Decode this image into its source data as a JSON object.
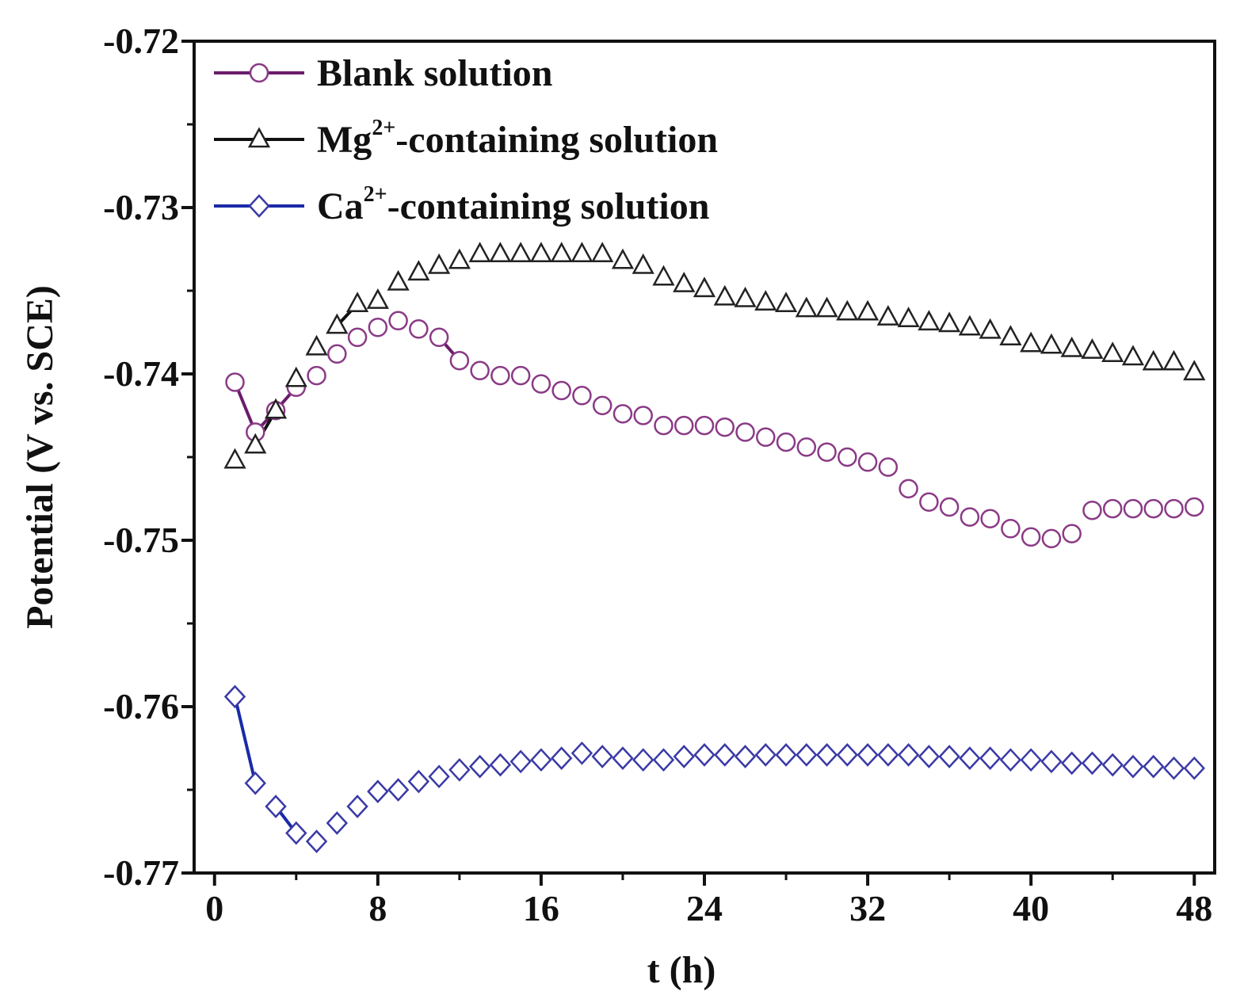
{
  "chart_data": {
    "type": "scatter",
    "title": "",
    "xlabel": "t (h)",
    "ylabel": "Potential (V vs. SCE)",
    "xlim": [
      -1,
      49
    ],
    "ylim": [
      -0.77,
      -0.72
    ],
    "xticks": [
      0,
      8,
      16,
      24,
      32,
      40,
      48
    ],
    "xtick_labels": [
      "0",
      "8",
      "16",
      "24",
      "32",
      "40",
      "48"
    ],
    "yticks": [
      -0.72,
      -0.73,
      -0.74,
      -0.75,
      -0.76,
      -0.77
    ],
    "ytick_labels": [
      "-0.72",
      "-0.73",
      "-0.74",
      "-0.75",
      "-0.76",
      "-0.77"
    ],
    "grid": false,
    "legend_position": "top-left",
    "x": [
      1,
      2,
      3,
      4,
      5,
      6,
      7,
      8,
      9,
      10,
      11,
      12,
      13,
      14,
      15,
      16,
      17,
      18,
      19,
      20,
      21,
      22,
      23,
      24,
      25,
      26,
      27,
      28,
      29,
      30,
      31,
      32,
      33,
      34,
      35,
      36,
      37,
      38,
      39,
      40,
      41,
      42,
      43,
      44,
      45,
      46,
      47,
      48
    ],
    "series": [
      {
        "name": "Blank solution",
        "legend_main": "Blank solution",
        "legend_sup": "",
        "legend_rest": "",
        "marker": "circle",
        "color": "#8a3a86",
        "line_color": "#6b1c6b",
        "values": [
          -0.7405,
          -0.7435,
          -0.7422,
          -0.7408,
          -0.7401,
          -0.7388,
          -0.7378,
          -0.7372,
          -0.7368,
          -0.7373,
          -0.7378,
          -0.7392,
          -0.7398,
          -0.7401,
          -0.7401,
          -0.7406,
          -0.741,
          -0.7413,
          -0.7419,
          -0.7424,
          -0.7425,
          -0.7431,
          -0.7431,
          -0.7431,
          -0.7432,
          -0.7435,
          -0.7438,
          -0.7441,
          -0.7444,
          -0.7447,
          -0.745,
          -0.7453,
          -0.7456,
          -0.7469,
          -0.7477,
          -0.748,
          -0.7486,
          -0.7487,
          -0.7493,
          -0.7498,
          -0.7499,
          -0.7496,
          -0.7482,
          -0.7481,
          -0.7481,
          -0.7481,
          -0.7481,
          -0.748
        ]
      },
      {
        "name": "Mg2+-containing solution",
        "legend_main": "Mg",
        "legend_sup": "2+",
        "legend_rest": "-containing solution",
        "marker": "triangle",
        "color": "#222222",
        "line_color": "#111111",
        "values": [
          -0.7452,
          -0.7443,
          -0.7422,
          -0.7403,
          -0.7384,
          -0.7371,
          -0.7358,
          -0.7356,
          -0.7345,
          -0.7339,
          -0.7335,
          -0.7332,
          -0.7328,
          -0.7328,
          -0.7328,
          -0.7328,
          -0.7328,
          -0.7328,
          -0.7328,
          -0.7332,
          -0.7335,
          -0.7342,
          -0.7346,
          -0.7349,
          -0.7354,
          -0.7355,
          -0.7357,
          -0.7358,
          -0.7361,
          -0.7361,
          -0.7363,
          -0.7363,
          -0.7366,
          -0.7367,
          -0.7369,
          -0.737,
          -0.7372,
          -0.7374,
          -0.7378,
          -0.7382,
          -0.7383,
          -0.7385,
          -0.7386,
          -0.7388,
          -0.739,
          -0.7393,
          -0.7393,
          -0.7399
        ]
      },
      {
        "name": "Ca2+-containing solution",
        "legend_main": "Ca",
        "legend_sup": "2+",
        "legend_rest": "-containing solution",
        "marker": "diamond",
        "color": "#3a3aa6",
        "line_color": "#1a2aa8",
        "values": [
          -0.7594,
          -0.7646,
          -0.766,
          -0.7676,
          -0.7681,
          -0.767,
          -0.766,
          -0.7651,
          -0.765,
          -0.7645,
          -0.7642,
          -0.7638,
          -0.7636,
          -0.7635,
          -0.7633,
          -0.7632,
          -0.7631,
          -0.7628,
          -0.763,
          -0.7631,
          -0.7632,
          -0.7632,
          -0.763,
          -0.7629,
          -0.7629,
          -0.763,
          -0.7629,
          -0.7629,
          -0.7629,
          -0.7629,
          -0.7629,
          -0.7629,
          -0.7629,
          -0.7629,
          -0.763,
          -0.763,
          -0.7631,
          -0.7631,
          -0.7632,
          -0.7632,
          -0.7633,
          -0.7634,
          -0.7634,
          -0.7635,
          -0.7636,
          -0.7636,
          -0.7637,
          -0.7637
        ]
      }
    ],
    "connected_points": [
      {
        "series": 0,
        "from": 0,
        "to": 1
      },
      {
        "series": 0,
        "from": 1,
        "to": 2
      },
      {
        "series": 0,
        "from": 2,
        "to": 3
      },
      {
        "series": 0,
        "from": 10,
        "to": 11
      },
      {
        "series": 1,
        "from": 1,
        "to": 2
      },
      {
        "series": 1,
        "from": 5,
        "to": 6
      },
      {
        "series": 2,
        "from": 0,
        "to": 1
      },
      {
        "series": 2,
        "from": 2,
        "to": 3
      }
    ]
  }
}
